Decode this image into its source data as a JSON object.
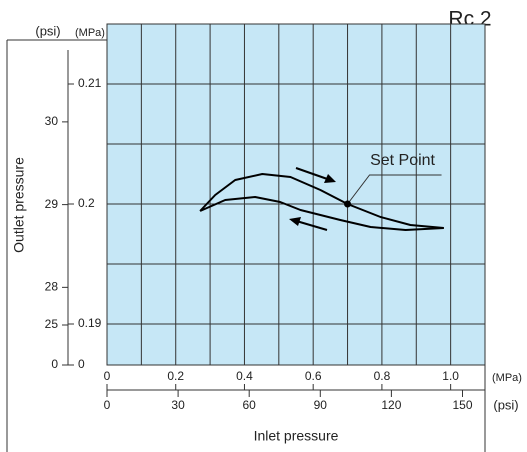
{
  "chart_data": {
    "type": "line",
    "title": "Rc 2",
    "xlabel": "Inlet pressure",
    "ylabel": "Outlet pressure",
    "x_unit": "(MPa)",
    "x2_unit": "(psi)",
    "y_unit": "(MPa)",
    "y2_unit": "(psi)",
    "xlim": [
      0,
      1.1
    ],
    "xticks": [
      0,
      0.2,
      0.4,
      0.6,
      0.8,
      {
        "value": 1.0,
        "label": "1.0"
      }
    ],
    "x2lim": [
      0,
      159.5
    ],
    "x2ticks": [
      0,
      30,
      60,
      90,
      120,
      150
    ],
    "ylim": [
      0.19,
      0.215
    ],
    "yticks": [
      0.19,
      0.2,
      0.21
    ],
    "ybreak_ticks": [
      0
    ],
    "y2lim": [
      27.557,
      31.183
    ],
    "y2ticks": [
      28,
      29,
      30
    ],
    "y2break_ticks": [
      25,
      0
    ],
    "grid": true,
    "background": "#c6e7f6",
    "series": [
      {
        "color": "#000000",
        "x": [
          0.271,
          0.315,
          0.373,
          0.452,
          0.534,
          0.621,
          0.7,
          0.796,
          0.883,
          0.98
        ],
        "values": [
          0.19942,
          0.20075,
          0.202,
          0.2025,
          0.20225,
          0.20117,
          0.2,
          0.19892,
          0.19825,
          0.198
        ]
      },
      {
        "color": "#000000",
        "x": [
          0.271,
          0.344,
          0.431,
          0.504,
          0.563,
          0.679,
          0.767,
          0.869,
          0.98
        ],
        "values": [
          0.19942,
          0.20033,
          0.20058,
          0.20017,
          0.1995,
          0.19867,
          0.19808,
          0.19783,
          0.198
        ]
      }
    ],
    "annotations": [
      {
        "text": "Set Point",
        "x": 0.7,
        "y": 0.2
      }
    ]
  }
}
